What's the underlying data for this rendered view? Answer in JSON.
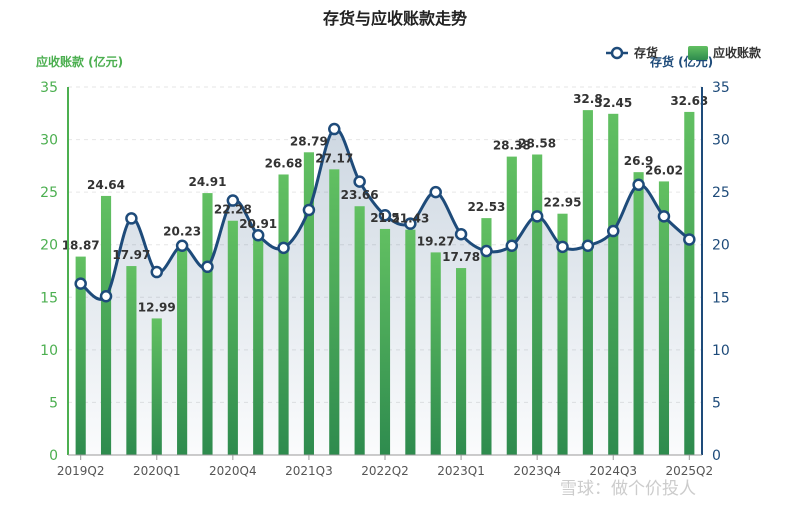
{
  "colors": {
    "bar_top": "#62c062",
    "bar_bottom": "#2e8b4e",
    "line": "#1e4b7a",
    "left_axis": "#4caf50",
    "right_axis": "#1e4b7a"
  },
  "chart_data": {
    "type": "bar",
    "title": "存货与应收账款走势",
    "ylabel_left": "应收账款 (亿元)",
    "ylabel_right": "存货 (亿元)",
    "ylim": [
      0,
      35
    ],
    "yticks": [
      0,
      5,
      10,
      15,
      20,
      25,
      30,
      35
    ],
    "legend": {
      "line": "存货",
      "bar": "应收账款",
      "position": "top-right"
    },
    "categories": [
      "2019Q2",
      "2019Q3",
      "2019Q4",
      "2020Q1",
      "2020Q2",
      "2020Q3",
      "2020Q4",
      "2021Q1",
      "2021Q2",
      "2021Q3",
      "2021Q4",
      "2022Q1",
      "2022Q2",
      "2022Q3",
      "2022Q4",
      "2023Q1",
      "2023Q2",
      "2023Q3",
      "2023Q4",
      "2024Q1",
      "2024Q2",
      "2024Q3",
      "2024Q4",
      "2025Q1",
      "2025Q2"
    ],
    "xtick_labels": [
      "2019Q2",
      "2020Q1",
      "2020Q4",
      "2021Q3",
      "2022Q2",
      "2023Q1",
      "2023Q4",
      "2024Q3",
      "2025Q2"
    ],
    "series": [
      {
        "name": "应收账款",
        "type": "bar",
        "values": [
          18.87,
          24.64,
          17.97,
          12.99,
          20.23,
          24.91,
          22.28,
          20.91,
          26.68,
          28.79,
          27.17,
          23.66,
          21.5,
          21.43,
          19.27,
          17.78,
          22.53,
          28.38,
          28.58,
          22.95,
          32.8,
          32.45,
          26.9,
          26.02,
          32.63
        ],
        "labels": [
          "18.87",
          "24.64",
          "17.97",
          "12.99",
          "20.23",
          "24.91",
          "22.28",
          "20.91",
          "26.68",
          "28.79",
          "27.17",
          "23.66",
          "21.5",
          "21.43",
          "19.27",
          "17.78",
          "22.53",
          "28.38",
          "28.58",
          "22.95",
          "32.8",
          "32.45",
          "26.9",
          "26.02",
          "32.63"
        ]
      },
      {
        "name": "存货",
        "type": "line",
        "values": [
          16.3,
          15.1,
          22.5,
          17.4,
          19.9,
          17.9,
          24.2,
          20.9,
          19.7,
          23.3,
          31.0,
          26.0,
          22.8,
          22.0,
          25.0,
          21.0,
          19.4,
          19.9,
          22.7,
          19.8,
          19.9,
          21.3,
          25.7,
          22.7,
          20.5
        ]
      }
    ]
  },
  "watermark": "雪球：做个价投人"
}
